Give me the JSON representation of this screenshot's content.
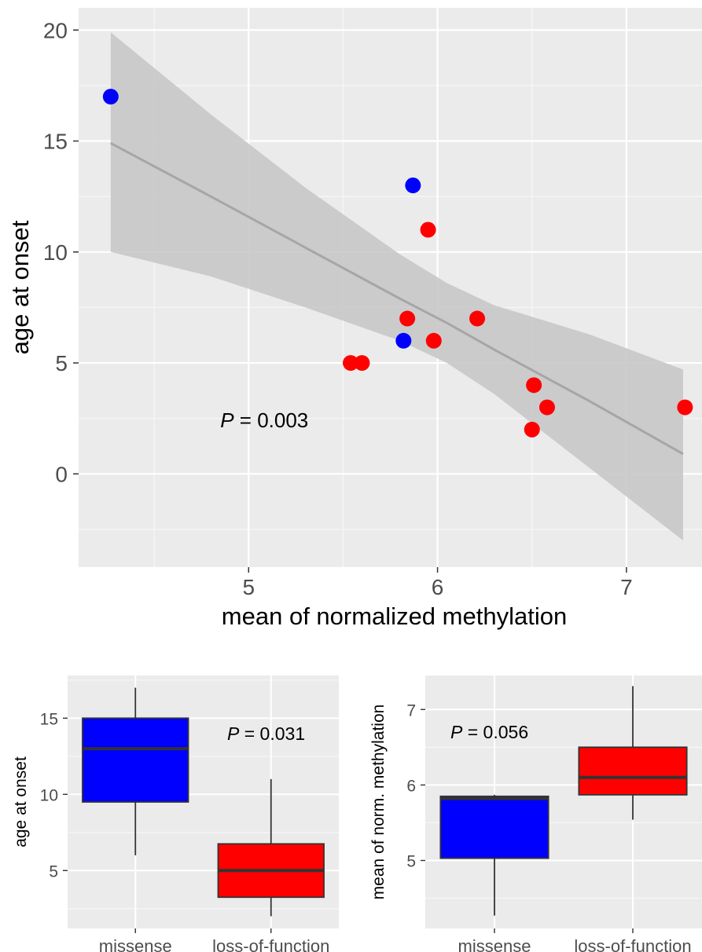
{
  "chart_data": [
    {
      "type": "scatter",
      "xlabel": "mean of normalized methylation",
      "ylabel": "age at onset",
      "xlim": [
        4.1,
        7.4
      ],
      "ylim": [
        -4.2,
        21.0
      ],
      "xticks": [
        "5",
        "6",
        "7"
      ],
      "yticks": [
        "0",
        "5",
        "10",
        "15",
        "20"
      ],
      "grid": true,
      "annotation": {
        "prefix": "P",
        "text": " = 0.003"
      },
      "series": [
        {
          "color": "#0000ff",
          "points": [
            [
              4.27,
              17
            ],
            [
              5.87,
              13
            ],
            [
              5.82,
              6
            ]
          ]
        },
        {
          "color": "#ff0000",
          "points": [
            [
              5.95,
              11
            ],
            [
              5.84,
              7
            ],
            [
              6.21,
              7
            ],
            [
              5.98,
              6
            ],
            [
              5.54,
              5
            ],
            [
              5.6,
              5
            ],
            [
              6.51,
              4
            ],
            [
              6.58,
              3
            ],
            [
              6.5,
              2
            ],
            [
              7.31,
              3
            ]
          ]
        }
      ],
      "fit": {
        "color": "#a6a6a6",
        "band_color": "#c8c8c8",
        "x": [
          4.27,
          4.8,
          5.3,
          5.8,
          6.05,
          6.3,
          6.8,
          7.3
        ],
        "y": [
          14.9,
          12.5,
          10.2,
          7.9,
          6.8,
          5.6,
          3.3,
          0.9
        ],
        "lower": [
          10.0,
          8.9,
          7.5,
          6.0,
          5.0,
          3.6,
          0.3,
          -3.0
        ],
        "upper": [
          19.9,
          16.2,
          12.9,
          9.9,
          8.6,
          7.6,
          6.3,
          4.7
        ]
      }
    },
    {
      "type": "box",
      "ylabel": "age at onset",
      "categories": [
        "missense",
        "loss-of-function"
      ],
      "ylim": [
        1.2,
        17.8
      ],
      "yticks": [
        "5",
        "10",
        "15"
      ],
      "grid": true,
      "annotation": {
        "prefix": "P",
        "text": " = 0.031"
      },
      "boxes": [
        {
          "category": "missense",
          "color": "#0000ff",
          "min": 6,
          "q1": 9.5,
          "median": 13,
          "q3": 15,
          "max": 17
        },
        {
          "category": "loss-of-function",
          "color": "#ff0000",
          "min": 2,
          "q1": 3.25,
          "median": 5,
          "q3": 6.75,
          "max": 11
        }
      ]
    },
    {
      "type": "box",
      "ylabel": "mean of norm. methylation",
      "categories": [
        "missense",
        "loss-of-function"
      ],
      "ylim": [
        4.1,
        7.45
      ],
      "yticks": [
        "5",
        "6",
        "7"
      ],
      "grid": true,
      "annotation": {
        "prefix": "P",
        "text": " = 0.056"
      },
      "boxes": [
        {
          "category": "missense",
          "color": "#0000ff",
          "min": 4.27,
          "q1": 5.03,
          "median": 5.82,
          "q3": 5.85,
          "max": 5.87
        },
        {
          "category": "loss-of-function",
          "color": "#ff0000",
          "min": 5.54,
          "q1": 5.87,
          "median": 6.1,
          "q3": 6.5,
          "max": 7.31
        }
      ]
    }
  ]
}
